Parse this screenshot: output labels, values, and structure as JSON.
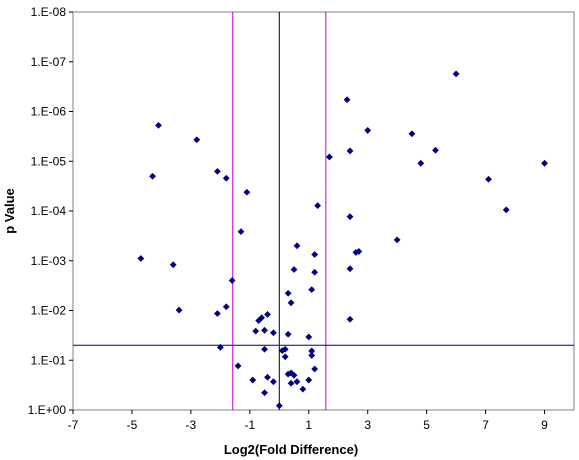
{
  "chart_data": {
    "type": "scatter",
    "title": "",
    "xlabel": "Log2(Fold Difference)",
    "ylabel": "p Value",
    "xlim": [
      -7,
      10
    ],
    "ylim": [
      1,
      1e-08
    ],
    "y_scale": "log-reversed",
    "x_ticks": [
      "-7",
      "-5",
      "-3",
      "-1",
      "1",
      "3",
      "5",
      "7",
      "9"
    ],
    "y_ticks": [
      "1.E-08",
      "1.E-07",
      "1.E-06",
      "1.E-05",
      "1.E-04",
      "1.E-03",
      "1.E-02",
      "1.E-01",
      "1.E+00"
    ],
    "grid": false,
    "legend": "none",
    "marker": "diamond",
    "marker_color": "#000080",
    "reference_lines": [
      {
        "orientation": "vertical",
        "x": 0,
        "color": "#000000"
      },
      {
        "orientation": "vertical",
        "x": -1.58,
        "color": "#cc00cc"
      },
      {
        "orientation": "vertical",
        "x": 1.58,
        "color": "#cc00cc"
      },
      {
        "orientation": "horizontal",
        "y": 0.05,
        "color": "#000080"
      }
    ],
    "series": [
      {
        "points": [
          {
            "x": -4.1,
            "y": 1.9e-06
          },
          {
            "x": -4.3,
            "y": 2e-05
          },
          {
            "x": -2.8,
            "y": 3.7e-06
          },
          {
            "x": -4.7,
            "y": 0.0009
          },
          {
            "x": -3.6,
            "y": 0.0012
          },
          {
            "x": -3.4,
            "y": 0.0098
          },
          {
            "x": -2.1,
            "y": 1.6e-05
          },
          {
            "x": -1.8,
            "y": 2.2e-05
          },
          {
            "x": -1.1,
            "y": 4.2e-05
          },
          {
            "x": -1.3,
            "y": 0.00026
          },
          {
            "x": -1.6,
            "y": 0.0025
          },
          {
            "x": -1.8,
            "y": 0.0084
          },
          {
            "x": -2.1,
            "y": 0.0115
          },
          {
            "x": -2.0,
            "y": 0.055
          },
          {
            "x": -1.4,
            "y": 0.13
          },
          {
            "x": -0.6,
            "y": 0.014
          },
          {
            "x": -0.7,
            "y": 0.016
          },
          {
            "x": -0.4,
            "y": 0.012
          },
          {
            "x": -0.5,
            "y": 0.025
          },
          {
            "x": -0.2,
            "y": 0.028
          },
          {
            "x": -0.8,
            "y": 0.026
          },
          {
            "x": -0.5,
            "y": 0.06
          },
          {
            "x": -0.9,
            "y": 0.25
          },
          {
            "x": -0.4,
            "y": 0.22
          },
          {
            "x": -0.2,
            "y": 0.27
          },
          {
            "x": -0.5,
            "y": 0.45
          },
          {
            "x": 0.0,
            "y": 0.82
          },
          {
            "x": 0.2,
            "y": 0.06
          },
          {
            "x": 0.1,
            "y": 0.064
          },
          {
            "x": 0.2,
            "y": 0.085
          },
          {
            "x": 0.3,
            "y": 0.03
          },
          {
            "x": 0.4,
            "y": 0.18
          },
          {
            "x": 0.5,
            "y": 0.2
          },
          {
            "x": 0.3,
            "y": 0.19
          },
          {
            "x": 0.6,
            "y": 0.27
          },
          {
            "x": 0.4,
            "y": 0.29
          },
          {
            "x": 0.8,
            "y": 0.38
          },
          {
            "x": 1.0,
            "y": 0.25
          },
          {
            "x": 1.2,
            "y": 0.15
          },
          {
            "x": 1.0,
            "y": 0.034
          },
          {
            "x": 1.1,
            "y": 0.065
          },
          {
            "x": 1.1,
            "y": 0.08
          },
          {
            "x": 0.6,
            "y": 0.0005
          },
          {
            "x": 0.5,
            "y": 0.0015
          },
          {
            "x": 1.2,
            "y": 0.00075
          },
          {
            "x": 1.2,
            "y": 0.0017
          },
          {
            "x": 1.1,
            "y": 0.0038
          },
          {
            "x": 0.3,
            "y": 0.0045
          },
          {
            "x": 0.4,
            "y": 0.007
          },
          {
            "x": 1.3,
            "y": 7.8e-05
          },
          {
            "x": 1.7,
            "y": 8.2e-06
          },
          {
            "x": 2.3,
            "y": 5.8e-07
          },
          {
            "x": 2.4,
            "y": 6.2e-06
          },
          {
            "x": 3.0,
            "y": 2.4e-06
          },
          {
            "x": 2.4,
            "y": 0.00013
          },
          {
            "x": 2.6,
            "y": 0.00068
          },
          {
            "x": 2.7,
            "y": 0.00065
          },
          {
            "x": 2.4,
            "y": 0.00145
          },
          {
            "x": 2.4,
            "y": 0.015
          },
          {
            "x": 4.0,
            "y": 0.00038
          },
          {
            "x": 4.5,
            "y": 2.8e-06
          },
          {
            "x": 4.8,
            "y": 1.1e-05
          },
          {
            "x": 5.3,
            "y": 6e-06
          },
          {
            "x": 6.0,
            "y": 1.75e-07
          },
          {
            "x": 7.1,
            "y": 2.3e-05
          },
          {
            "x": 7.7,
            "y": 9.5e-05
          },
          {
            "x": 9.0,
            "y": 1.1e-05
          }
        ]
      }
    ]
  }
}
